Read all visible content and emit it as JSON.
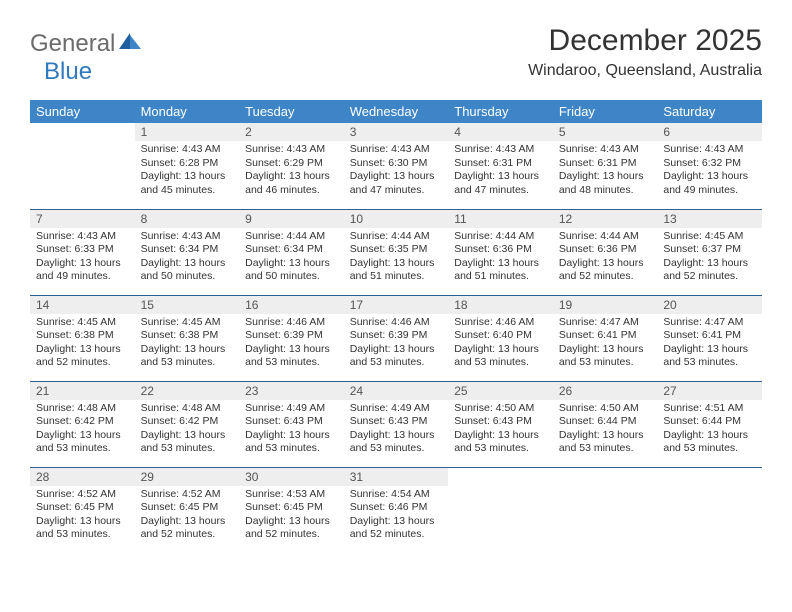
{
  "logo": {
    "text1": "General",
    "text2": "Blue"
  },
  "title": "December 2025",
  "location": "Windaroo, Queensland, Australia",
  "colors": {
    "header_bg": "#3d85c6",
    "header_text": "#ffffff",
    "daynum_bg": "#eeeeee",
    "row_divider": "#2f5f8f",
    "text": "#333333",
    "logo_gray": "#6b6b6b",
    "logo_blue": "#2f79bd"
  },
  "fonts": {
    "title_size_pt": 22,
    "location_size_pt": 12,
    "header_size_pt": 10,
    "body_size_pt": 8
  },
  "weekdays": [
    "Sunday",
    "Monday",
    "Tuesday",
    "Wednesday",
    "Thursday",
    "Friday",
    "Saturday"
  ],
  "weeks": [
    [
      {
        "n": "",
        "sunrise": "",
        "sunset": "",
        "daylight": ""
      },
      {
        "n": "1",
        "sunrise": "4:43 AM",
        "sunset": "6:28 PM",
        "daylight": "13 hours and 45 minutes."
      },
      {
        "n": "2",
        "sunrise": "4:43 AM",
        "sunset": "6:29 PM",
        "daylight": "13 hours and 46 minutes."
      },
      {
        "n": "3",
        "sunrise": "4:43 AM",
        "sunset": "6:30 PM",
        "daylight": "13 hours and 47 minutes."
      },
      {
        "n": "4",
        "sunrise": "4:43 AM",
        "sunset": "6:31 PM",
        "daylight": "13 hours and 47 minutes."
      },
      {
        "n": "5",
        "sunrise": "4:43 AM",
        "sunset": "6:31 PM",
        "daylight": "13 hours and 48 minutes."
      },
      {
        "n": "6",
        "sunrise": "4:43 AM",
        "sunset": "6:32 PM",
        "daylight": "13 hours and 49 minutes."
      }
    ],
    [
      {
        "n": "7",
        "sunrise": "4:43 AM",
        "sunset": "6:33 PM",
        "daylight": "13 hours and 49 minutes."
      },
      {
        "n": "8",
        "sunrise": "4:43 AM",
        "sunset": "6:34 PM",
        "daylight": "13 hours and 50 minutes."
      },
      {
        "n": "9",
        "sunrise": "4:44 AM",
        "sunset": "6:34 PM",
        "daylight": "13 hours and 50 minutes."
      },
      {
        "n": "10",
        "sunrise": "4:44 AM",
        "sunset": "6:35 PM",
        "daylight": "13 hours and 51 minutes."
      },
      {
        "n": "11",
        "sunrise": "4:44 AM",
        "sunset": "6:36 PM",
        "daylight": "13 hours and 51 minutes."
      },
      {
        "n": "12",
        "sunrise": "4:44 AM",
        "sunset": "6:36 PM",
        "daylight": "13 hours and 52 minutes."
      },
      {
        "n": "13",
        "sunrise": "4:45 AM",
        "sunset": "6:37 PM",
        "daylight": "13 hours and 52 minutes."
      }
    ],
    [
      {
        "n": "14",
        "sunrise": "4:45 AM",
        "sunset": "6:38 PM",
        "daylight": "13 hours and 52 minutes."
      },
      {
        "n": "15",
        "sunrise": "4:45 AM",
        "sunset": "6:38 PM",
        "daylight": "13 hours and 53 minutes."
      },
      {
        "n": "16",
        "sunrise": "4:46 AM",
        "sunset": "6:39 PM",
        "daylight": "13 hours and 53 minutes."
      },
      {
        "n": "17",
        "sunrise": "4:46 AM",
        "sunset": "6:39 PM",
        "daylight": "13 hours and 53 minutes."
      },
      {
        "n": "18",
        "sunrise": "4:46 AM",
        "sunset": "6:40 PM",
        "daylight": "13 hours and 53 minutes."
      },
      {
        "n": "19",
        "sunrise": "4:47 AM",
        "sunset": "6:41 PM",
        "daylight": "13 hours and 53 minutes."
      },
      {
        "n": "20",
        "sunrise": "4:47 AM",
        "sunset": "6:41 PM",
        "daylight": "13 hours and 53 minutes."
      }
    ],
    [
      {
        "n": "21",
        "sunrise": "4:48 AM",
        "sunset": "6:42 PM",
        "daylight": "13 hours and 53 minutes."
      },
      {
        "n": "22",
        "sunrise": "4:48 AM",
        "sunset": "6:42 PM",
        "daylight": "13 hours and 53 minutes."
      },
      {
        "n": "23",
        "sunrise": "4:49 AM",
        "sunset": "6:43 PM",
        "daylight": "13 hours and 53 minutes."
      },
      {
        "n": "24",
        "sunrise": "4:49 AM",
        "sunset": "6:43 PM",
        "daylight": "13 hours and 53 minutes."
      },
      {
        "n": "25",
        "sunrise": "4:50 AM",
        "sunset": "6:43 PM",
        "daylight": "13 hours and 53 minutes."
      },
      {
        "n": "26",
        "sunrise": "4:50 AM",
        "sunset": "6:44 PM",
        "daylight": "13 hours and 53 minutes."
      },
      {
        "n": "27",
        "sunrise": "4:51 AM",
        "sunset": "6:44 PM",
        "daylight": "13 hours and 53 minutes."
      }
    ],
    [
      {
        "n": "28",
        "sunrise": "4:52 AM",
        "sunset": "6:45 PM",
        "daylight": "13 hours and 53 minutes."
      },
      {
        "n": "29",
        "sunrise": "4:52 AM",
        "sunset": "6:45 PM",
        "daylight": "13 hours and 52 minutes."
      },
      {
        "n": "30",
        "sunrise": "4:53 AM",
        "sunset": "6:45 PM",
        "daylight": "13 hours and 52 minutes."
      },
      {
        "n": "31",
        "sunrise": "4:54 AM",
        "sunset": "6:46 PM",
        "daylight": "13 hours and 52 minutes."
      },
      {
        "n": "",
        "sunrise": "",
        "sunset": "",
        "daylight": ""
      },
      {
        "n": "",
        "sunrise": "",
        "sunset": "",
        "daylight": ""
      },
      {
        "n": "",
        "sunrise": "",
        "sunset": "",
        "daylight": ""
      }
    ]
  ],
  "labels": {
    "sunrise": "Sunrise:",
    "sunset": "Sunset:",
    "daylight": "Daylight:"
  }
}
